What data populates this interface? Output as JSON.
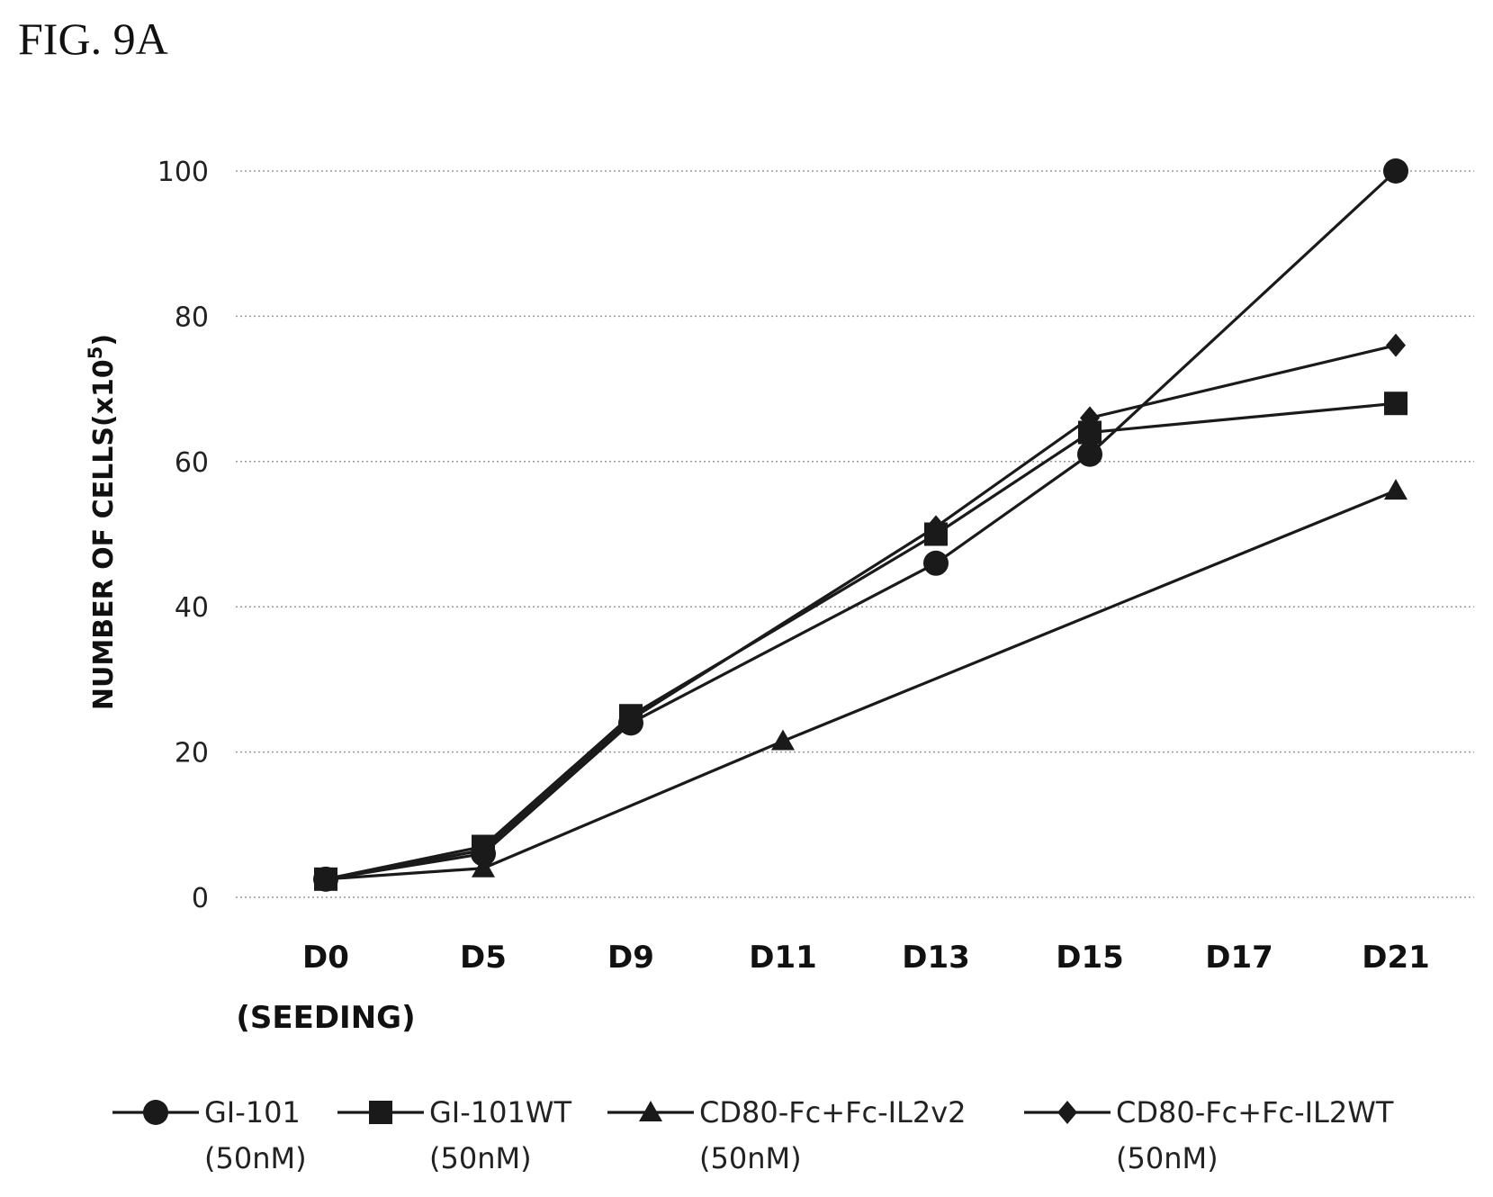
{
  "figure": {
    "label": "FIG. 9A"
  },
  "chart_data": {
    "type": "line",
    "ylabel": "NUMBER OF CELLS(x10",
    "ylabel_superscript": "5",
    "ylabel_suffix": ")",
    "ylim": [
      0,
      100
    ],
    "yticks": [
      0,
      20,
      40,
      60,
      80,
      100
    ],
    "grid": "horizontal-dotted",
    "legend_position": "bottom",
    "categories": [
      "D0",
      "D5",
      "D9",
      "D11",
      "D13",
      "D15",
      "D17",
      "D21"
    ],
    "category_sublabels": [
      "(SEEDING)",
      "",
      "",
      "",
      "",
      "",
      "",
      ""
    ],
    "series": [
      {
        "name": "GI-101",
        "name_line2": "(50nM)",
        "marker": "circle",
        "values": [
          2.5,
          6,
          24,
          null,
          46,
          61,
          null,
          100
        ]
      },
      {
        "name": "GI-101WT",
        "name_line2": "(50nM)",
        "marker": "square",
        "values": [
          2.5,
          7,
          25,
          null,
          50,
          64,
          null,
          68
        ]
      },
      {
        "name": "CD80-Fc+Fc-IL2v2",
        "name_line2": "(50nM)",
        "marker": "triangle",
        "values": [
          2.5,
          4,
          null,
          21.5,
          null,
          null,
          null,
          56
        ]
      },
      {
        "name": "CD80-Fc+Fc-IL2WT",
        "name_line2": "(50nM)",
        "marker": "diamond",
        "values": [
          2.5,
          6.5,
          24.5,
          null,
          51,
          66,
          null,
          76
        ]
      }
    ]
  }
}
